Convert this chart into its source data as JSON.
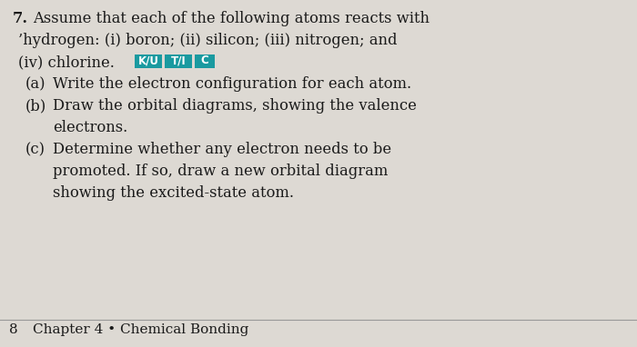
{
  "bg_color": "#ddd9d3",
  "text_color": "#1a1a1a",
  "question_number": "7.",
  "line1": "Assume that each of the following atoms reacts with",
  "line2": "’hydrogen: (i) boron; (ii) silicon; (iii) nitrogen; and",
  "line3": "(iv) chlorine. ",
  "badges": [
    {
      "text": "K/U",
      "bg": "#1a9aa0",
      "fg": "#ffffff"
    },
    {
      "text": "T/I",
      "bg": "#1a9aa0",
      "fg": "#ffffff"
    },
    {
      "text": "C",
      "bg": "#1a9aa0",
      "fg": "#ffffff"
    }
  ],
  "part_a_label": "(a)",
  "part_a_text": "Write the electron configuration for each atom.",
  "part_b_label": "(b)",
  "part_b_line1": "Draw the orbital diagrams, showing the valence",
  "part_b_line2": "electrons.",
  "part_c_label": "(c)",
  "part_c_line1": "Determine whether any electron needs to be",
  "part_c_line2": "promoted. If so, draw a new orbital diagram",
  "part_c_line3": "showing the excited-state atom.",
  "footer_number": "8",
  "footer_text": "Chapter 4 • Chemical Bonding",
  "main_fontsize": 11.8,
  "footer_fontsize": 11.0,
  "indent_label": 28,
  "indent_text": 58
}
